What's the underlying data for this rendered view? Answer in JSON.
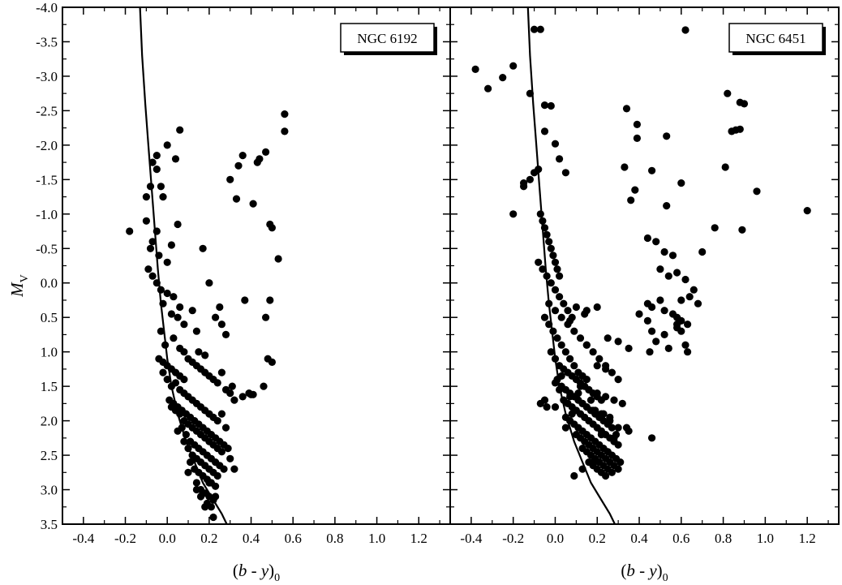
{
  "chart_data": [
    {
      "type": "scatter",
      "title": "",
      "panel_label": "NGC 6192",
      "xlabel": "(b - y)0",
      "ylabel": "MV",
      "xlim": [
        -0.5,
        1.35
      ],
      "ylim": [
        3.5,
        -4.0
      ],
      "y_inverted": true,
      "x_ticks": [
        -0.4,
        -0.2,
        0.0,
        0.2,
        0.4,
        0.6,
        0.8,
        1.0,
        1.2
      ],
      "x_tick_labels": [
        "-0.4",
        "-0.2",
        "0.0",
        "0.2",
        "0.4",
        "0.6",
        "0.8",
        "1.0",
        "1.2"
      ],
      "y_ticks": [
        -4.0,
        -3.5,
        -3.0,
        -2.5,
        -2.0,
        -1.5,
        -1.0,
        -0.5,
        0.0,
        0.5,
        1.0,
        1.5,
        2.0,
        2.5,
        3.0,
        3.5
      ],
      "y_tick_labels": [
        "-4.0",
        "-3.5",
        "-3.0",
        "-2.5",
        "-2.0",
        "-1.5",
        "-1.0",
        "-0.5",
        "0.0",
        "0.5",
        "1.0",
        "1.5",
        "2.0",
        "2.5",
        "3.0",
        "3.5"
      ],
      "grid": false,
      "curve": {
        "x": [
          -0.13,
          -0.12,
          -0.105,
          -0.09,
          -0.075,
          -0.06,
          -0.045,
          -0.03,
          -0.015,
          0.0,
          0.02,
          0.05,
          0.09,
          0.13,
          0.17,
          0.21,
          0.26,
          0.3
        ],
        "y": [
          -4.0,
          -3.3,
          -2.6,
          -2.0,
          -1.4,
          -0.8,
          -0.2,
          0.3,
          0.7,
          1.1,
          1.5,
          1.9,
          2.3,
          2.6,
          2.9,
          3.1,
          3.35,
          3.6
        ]
      },
      "points": {
        "x": [
          -0.18,
          -0.1,
          -0.08,
          -0.07,
          -0.05,
          -0.03,
          -0.05,
          -0.02,
          0.0,
          0.04,
          0.06,
          0.3,
          0.33,
          0.34,
          0.36,
          0.41,
          0.43,
          0.44,
          0.47,
          0.49,
          0.53,
          0.56,
          0.56,
          0.5,
          0.49,
          0.47,
          0.48,
          0.5,
          0.46,
          0.37,
          0.39,
          0.41,
          -0.05,
          -0.07,
          -0.08,
          -0.04,
          0.05,
          0.02,
          0.0,
          -0.1,
          -0.09,
          -0.07,
          -0.05,
          -0.03,
          0.0,
          0.03,
          -0.02,
          0.02,
          0.05,
          0.06,
          0.08,
          0.12,
          0.2,
          0.14,
          0.25,
          0.17,
          0.23,
          0.26,
          0.28,
          0.31,
          0.15,
          0.18,
          -0.03,
          -0.01,
          0.03,
          0.06,
          0.08,
          0.1,
          0.12,
          0.14,
          0.16,
          0.18,
          0.2,
          0.22,
          0.24,
          0.26,
          0.28,
          0.3,
          0.32,
          0.36,
          0.4,
          -0.02,
          0.0,
          0.02,
          0.04,
          0.06,
          0.08,
          0.1,
          0.12,
          0.14,
          0.16,
          0.18,
          0.2,
          0.22,
          0.24,
          0.26,
          0.28,
          0.02,
          0.04,
          0.06,
          0.08,
          0.1,
          0.12,
          0.14,
          0.16,
          0.18,
          0.2,
          0.22,
          0.24,
          0.26,
          0.05,
          0.07,
          0.09,
          0.11,
          0.13,
          0.15,
          0.17,
          0.19,
          0.21,
          0.23,
          0.25,
          0.27,
          0.08,
          0.1,
          0.12,
          0.14,
          0.16,
          0.18,
          0.2,
          0.22,
          0.24,
          0.11,
          0.13,
          0.15,
          0.17,
          0.19,
          0.21,
          0.23,
          0.14,
          0.16,
          0.18,
          0.2,
          0.22,
          0.16,
          0.19,
          0.21,
          0.23,
          -0.04,
          -0.02,
          0.0,
          0.02,
          0.04,
          0.06,
          0.08,
          0.01,
          0.03,
          0.05,
          0.07,
          0.09,
          0.11,
          0.13,
          0.15,
          0.17,
          0.19,
          0.21,
          0.23,
          0.25,
          0.27,
          0.29,
          0.3,
          0.32,
          0.12,
          0.1,
          0.14,
          0.18,
          0.22,
          0.2
        ],
        "y": [
          -0.75,
          -1.25,
          -1.4,
          -1.75,
          -1.65,
          -1.4,
          -1.85,
          -1.25,
          -2.0,
          -1.8,
          -2.22,
          -1.5,
          -1.22,
          -1.7,
          -1.85,
          -1.15,
          -1.75,
          -1.8,
          -1.9,
          -0.85,
          -0.35,
          -2.45,
          -2.2,
          -0.8,
          0.25,
          0.5,
          1.1,
          1.15,
          1.5,
          0.25,
          1.6,
          1.62,
          -0.75,
          -0.6,
          -0.5,
          -0.4,
          -0.85,
          -0.55,
          -0.3,
          -0.9,
          -0.2,
          -0.1,
          0.0,
          0.1,
          0.15,
          0.2,
          0.3,
          0.45,
          0.5,
          0.35,
          0.6,
          0.4,
          0.0,
          0.7,
          0.35,
          -0.5,
          0.5,
          0.6,
          0.75,
          1.5,
          1.0,
          1.05,
          0.7,
          0.9,
          0.8,
          0.95,
          1.0,
          1.1,
          1.15,
          1.2,
          1.25,
          1.3,
          1.35,
          1.4,
          1.45,
          1.3,
          1.55,
          1.6,
          1.7,
          1.65,
          1.62,
          1.3,
          1.4,
          1.5,
          1.45,
          1.55,
          1.6,
          1.65,
          1.7,
          1.75,
          1.8,
          1.85,
          1.9,
          1.95,
          2.0,
          1.9,
          2.1,
          1.8,
          1.85,
          1.9,
          2.0,
          2.05,
          2.1,
          2.15,
          2.2,
          2.25,
          2.3,
          2.35,
          2.4,
          2.45,
          2.15,
          2.1,
          2.2,
          2.3,
          2.35,
          2.4,
          2.45,
          2.5,
          2.55,
          2.6,
          2.65,
          2.7,
          2.3,
          2.4,
          2.5,
          2.55,
          2.6,
          2.65,
          2.7,
          2.75,
          2.8,
          2.6,
          2.7,
          2.75,
          2.8,
          2.85,
          2.9,
          2.95,
          2.9,
          3.0,
          3.05,
          3.1,
          3.15,
          3.1,
          3.2,
          3.25,
          3.1,
          1.1,
          1.15,
          1.2,
          1.25,
          1.3,
          1.35,
          1.4,
          1.7,
          1.75,
          1.8,
          1.85,
          1.9,
          1.95,
          2.0,
          2.05,
          2.1,
          2.15,
          2.2,
          2.25,
          2.3,
          2.35,
          2.4,
          2.55,
          2.7,
          2.5,
          2.75,
          3.0,
          3.25,
          3.4,
          2.9
        ]
      }
    },
    {
      "type": "scatter",
      "title": "",
      "panel_label": "NGC 6451",
      "xlabel": "(b - y)0",
      "xlim": [
        -0.5,
        1.35
      ],
      "ylim": [
        3.5,
        -4.0
      ],
      "y_inverted": true,
      "x_ticks": [
        -0.4,
        -0.2,
        0.0,
        0.2,
        0.4,
        0.6,
        0.8,
        1.0,
        1.2
      ],
      "x_tick_labels": [
        "-0.4",
        "-0.2",
        "0.0",
        "0.2",
        "0.4",
        "0.6",
        "0.8",
        "1.0",
        "1.2"
      ],
      "grid": false,
      "curve": {
        "x": [
          -0.13,
          -0.12,
          -0.105,
          -0.09,
          -0.075,
          -0.06,
          -0.045,
          -0.03,
          -0.015,
          0.0,
          0.02,
          0.05,
          0.09,
          0.13,
          0.17,
          0.21,
          0.26,
          0.3
        ],
        "y": [
          -4.0,
          -3.3,
          -2.6,
          -2.0,
          -1.4,
          -0.8,
          -0.2,
          0.3,
          0.7,
          1.1,
          1.5,
          1.9,
          2.3,
          2.6,
          2.9,
          3.1,
          3.35,
          3.6
        ]
      },
      "points": {
        "x": [
          -0.38,
          -0.32,
          -0.25,
          -0.2,
          -0.1,
          -0.07,
          -0.12,
          -0.05,
          -0.02,
          0.62,
          -0.2,
          -0.15,
          -0.05,
          0.0,
          0.02,
          0.05,
          -0.08,
          -0.1,
          -0.15,
          -0.12,
          0.34,
          0.39,
          0.39,
          0.53,
          0.33,
          0.46,
          0.38,
          0.6,
          0.36,
          0.53,
          0.82,
          0.88,
          0.9,
          0.84,
          0.86,
          0.88,
          0.81,
          0.96,
          0.76,
          0.89,
          1.2,
          0.44,
          0.48,
          0.52,
          0.56,
          0.5,
          0.54,
          0.58,
          0.62,
          0.66,
          0.7,
          0.6,
          0.64,
          0.68,
          0.44,
          0.46,
          0.5,
          0.52,
          0.56,
          0.58,
          0.6,
          0.63,
          0.48,
          0.54,
          0.62,
          0.63,
          0.4,
          0.44,
          0.46,
          0.52,
          0.58,
          0.58,
          0.6,
          0.45,
          -0.07,
          -0.06,
          -0.05,
          -0.04,
          -0.03,
          -0.02,
          -0.01,
          0.0,
          0.01,
          0.02,
          -0.08,
          -0.06,
          -0.04,
          -0.02,
          0.0,
          0.02,
          0.04,
          0.06,
          0.08,
          -0.05,
          -0.03,
          -0.01,
          0.01,
          0.03,
          0.05,
          0.07,
          0.09,
          0.11,
          0.13,
          0.15,
          -0.02,
          0.0,
          0.02,
          0.04,
          0.06,
          0.08,
          0.1,
          0.12,
          0.14,
          0.16,
          0.18,
          0.2,
          0.22,
          0.01,
          0.03,
          0.05,
          0.07,
          0.09,
          0.11,
          0.13,
          0.15,
          0.17,
          0.19,
          0.21,
          0.23,
          0.25,
          0.27,
          0.04,
          0.06,
          0.08,
          0.1,
          0.12,
          0.14,
          0.16,
          0.18,
          0.2,
          0.22,
          0.24,
          0.26,
          0.28,
          0.3,
          0.07,
          0.09,
          0.11,
          0.13,
          0.15,
          0.17,
          0.19,
          0.21,
          0.23,
          0.25,
          0.27,
          0.29,
          0.31,
          0.1,
          0.12,
          0.14,
          0.16,
          0.18,
          0.2,
          0.22,
          0.24,
          0.26,
          0.28,
          0.3,
          0.13,
          0.15,
          0.17,
          0.19,
          0.21,
          0.23,
          0.25,
          0.27,
          0.16,
          0.18,
          0.2,
          0.22,
          0.24,
          0.18,
          0.22,
          0.26,
          0.3,
          0.35,
          0.22,
          0.28,
          0.12,
          0.16,
          0.2,
          0.24,
          0.28,
          0.32,
          0.2,
          0.24,
          0.15,
          0.25,
          0.3,
          0.35,
          0.3,
          0.27,
          0.24,
          0.21,
          0.18,
          0.15,
          0.12,
          0.09,
          0.06,
          0.03,
          0.0,
          -0.03,
          0.1,
          0.14,
          0.08,
          0.05,
          -0.05,
          0.0,
          0.05,
          -0.07,
          -0.04,
          0.11,
          0.17,
          0.23,
          0.29,
          0.34,
          0.26,
          0.19,
          0.13,
          0.07,
          0.02,
          0.0,
          0.03,
          0.07,
          0.15,
          0.2,
          0.25,
          0.18,
          0.13,
          0.09,
          0.46
        ],
        "y": [
          -3.1,
          -2.82,
          -2.98,
          -3.15,
          -3.68,
          -3.68,
          -2.75,
          -2.58,
          -2.57,
          -3.67,
          -1.0,
          -1.4,
          -2.2,
          -2.02,
          -1.8,
          -1.6,
          -1.65,
          -1.6,
          -1.45,
          -1.5,
          -2.53,
          -2.3,
          -2.1,
          -2.13,
          -1.68,
          -1.63,
          -1.35,
          -1.45,
          -1.2,
          -1.12,
          -2.75,
          -2.62,
          -2.6,
          -2.2,
          -2.22,
          -2.23,
          -1.68,
          -1.33,
          -0.8,
          -0.77,
          -1.05,
          -0.65,
          -0.6,
          -0.45,
          -0.4,
          -0.2,
          -0.1,
          -0.15,
          -0.05,
          0.1,
          -0.45,
          0.25,
          0.2,
          0.3,
          0.3,
          0.35,
          0.25,
          0.4,
          0.45,
          0.5,
          0.55,
          0.6,
          0.85,
          0.95,
          0.9,
          1.0,
          0.45,
          0.55,
          0.7,
          0.75,
          0.6,
          0.65,
          0.7,
          1.0,
          -1.0,
          -0.9,
          -0.8,
          -0.7,
          -0.6,
          -0.5,
          -0.4,
          -0.3,
          -0.2,
          -0.1,
          -0.3,
          -0.2,
          -0.1,
          0.0,
          0.1,
          0.2,
          0.3,
          0.4,
          0.5,
          0.5,
          0.6,
          0.7,
          0.8,
          0.9,
          1.0,
          1.1,
          1.2,
          1.3,
          1.35,
          1.4,
          1.0,
          1.1,
          1.2,
          1.25,
          1.3,
          1.35,
          1.4,
          1.45,
          1.5,
          1.55,
          1.6,
          1.65,
          1.7,
          1.4,
          1.5,
          1.55,
          1.6,
          1.65,
          1.7,
          1.75,
          1.8,
          1.85,
          1.9,
          1.95,
          2.0,
          2.05,
          2.1,
          1.7,
          1.75,
          1.8,
          1.85,
          1.9,
          1.95,
          2.0,
          2.05,
          2.1,
          2.15,
          2.2,
          2.25,
          2.3,
          2.35,
          2.0,
          2.05,
          2.1,
          2.15,
          2.2,
          2.25,
          2.3,
          2.35,
          2.4,
          2.45,
          2.5,
          2.55,
          2.6,
          2.2,
          2.25,
          2.3,
          2.35,
          2.4,
          2.45,
          2.5,
          2.55,
          2.6,
          2.65,
          2.7,
          2.4,
          2.45,
          2.5,
          2.55,
          2.6,
          2.65,
          2.7,
          2.75,
          2.6,
          2.65,
          2.7,
          2.75,
          2.8,
          1.85,
          1.9,
          2.0,
          2.1,
          2.15,
          2.2,
          2.25,
          1.5,
          1.55,
          1.6,
          1.65,
          1.7,
          1.75,
          1.2,
          1.25,
          0.9,
          0.8,
          0.85,
          0.95,
          1.4,
          1.3,
          1.2,
          1.1,
          1.0,
          0.9,
          0.8,
          0.7,
          0.6,
          0.5,
          0.4,
          0.3,
          0.35,
          0.45,
          1.9,
          2.1,
          1.7,
          1.8,
          1.95,
          1.75,
          1.8,
          1.6,
          1.7,
          1.9,
          2.2,
          2.1,
          1.95,
          1.85,
          1.75,
          1.65,
          1.55,
          1.45,
          1.35,
          0.55,
          0.4,
          0.35,
          2.45,
          2.6,
          2.7,
          2.8,
          2.25
        ]
      }
    }
  ]
}
